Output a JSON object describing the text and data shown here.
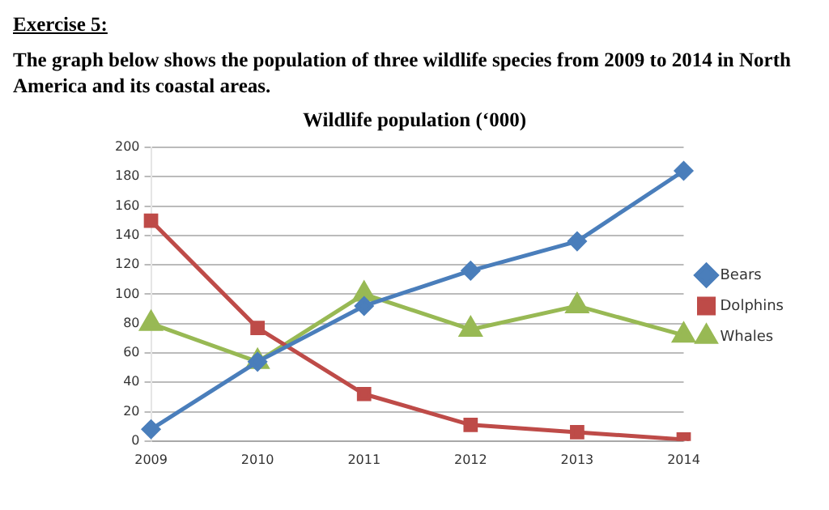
{
  "chart_data": {
    "type": "line",
    "title": "Wildlife population (‘000)",
    "subtitle": "The graph below shows the population of three wildlife species from 2009 to 2014 in North America and its coastal areas.",
    "annotations": [
      "Exercise 5:"
    ],
    "categories": [
      "2009",
      "2010",
      "2011",
      "2012",
      "2013",
      "2014"
    ],
    "series": [
      {
        "name": "Bears",
        "color": "#4a7ebb",
        "marker": "diamond",
        "values": [
          8,
          54,
          92,
          116,
          136,
          184
        ]
      },
      {
        "name": "Dolphins",
        "color": "#be4b48",
        "marker": "square",
        "values": [
          150,
          77,
          32,
          11,
          6,
          1
        ]
      },
      {
        "name": "Whales",
        "color": "#98b954",
        "marker": "triangle",
        "values": [
          80,
          54,
          100,
          76,
          92,
          72
        ]
      }
    ],
    "ylim": [
      0,
      200
    ],
    "yticks": [
      0,
      20,
      40,
      60,
      80,
      100,
      120,
      140,
      160,
      180,
      200
    ],
    "grid": "y",
    "legend": "right"
  }
}
